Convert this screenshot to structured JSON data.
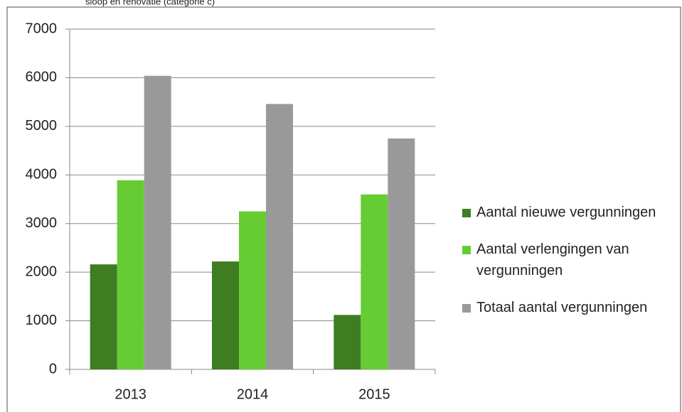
{
  "chart_data": {
    "type": "bar",
    "title": "sloop en renovatie (categorie c)",
    "categories": [
      "2013",
      "2014",
      "2015"
    ],
    "series": [
      {
        "name": "Aantal nieuwe vergunningen",
        "color": "#3e7d22",
        "values": [
          2160,
          2220,
          1120
        ]
      },
      {
        "name": "Aantal verlengingen van vergunningen",
        "color": "#66cc33",
        "values": [
          3890,
          3250,
          3600
        ]
      },
      {
        "name": "Totaal aantal vergunningen",
        "color": "#999999",
        "values": [
          6040,
          5460,
          4750
        ]
      }
    ],
    "ylim": [
      0,
      7000
    ],
    "yticks": [
      0,
      1000,
      2000,
      3000,
      4000,
      5000,
      6000,
      7000
    ],
    "grid": true,
    "legend": "right"
  }
}
